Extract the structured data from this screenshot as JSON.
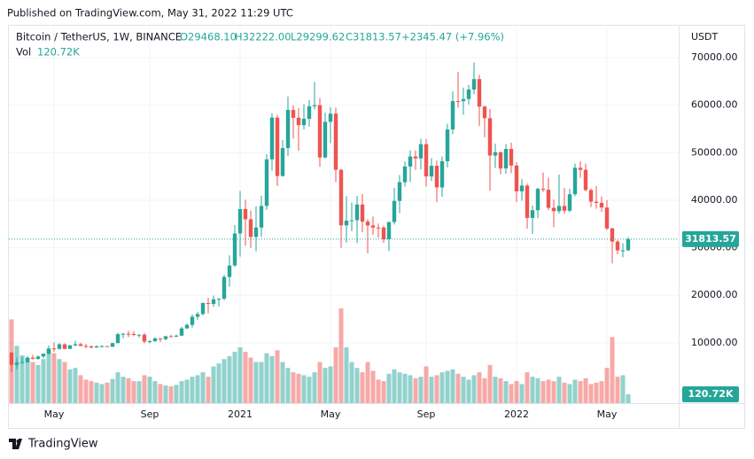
{
  "published": "Published on TradingView.com, May 31, 2022 11:29 UTC",
  "legend": {
    "symbol": "Bitcoin / TetherUS, 1W, BINANCE",
    "open": "O29468.10",
    "high": "H32222.00",
    "low": "L29299.62",
    "close": "C31813.57",
    "change": "+2345.47 (+7.96%)",
    "vol_name": "Vol",
    "vol_value": "120.72K"
  },
  "footer": "TradingView",
  "chart_data": {
    "type": "candlestick",
    "y_axis_unit": "USDT",
    "up_color": "#26a69a",
    "down_color": "#ef5350",
    "grid": true,
    "ylim": [
      -2710,
      76730
    ],
    "yticks": [
      {
        "value": 10000,
        "label": "10000.00"
      },
      {
        "value": 20000,
        "label": "20000.00"
      },
      {
        "value": 30000,
        "label": "30000.00"
      },
      {
        "value": 40000,
        "label": "40000.00"
      },
      {
        "value": 50000,
        "label": "50000.00"
      },
      {
        "value": 60000,
        "label": "60000.00"
      },
      {
        "value": 70000,
        "label": "70000.00"
      }
    ],
    "xlim": [
      -0.5,
      125.5
    ],
    "xticks": [
      {
        "value": 8,
        "label": "May"
      },
      {
        "value": 26,
        "label": "Sep"
      },
      {
        "value": 43,
        "label": "2021"
      },
      {
        "value": 60,
        "label": "May"
      },
      {
        "value": 78,
        "label": "Sep"
      },
      {
        "value": 95,
        "label": "2022"
      },
      {
        "value": 112,
        "label": "May"
      }
    ],
    "open": [
      7940,
      5361,
      5830,
      5880,
      6860,
      6625,
      7120,
      7700,
      8800,
      8720,
      9680,
      8720,
      9450,
      9700,
      9330,
      9290,
      9000,
      9250,
      9300,
      9160,
      9930,
      11800,
      11900,
      11850,
      11650,
      11700,
      10250,
      10330,
      10920,
      10770,
      11370,
      11290,
      11500,
      13030,
      13760,
      15480,
      16050,
      18370,
      18180,
      19150,
      19270,
      23850,
      26260,
      33000,
      38150,
      36000,
      32260,
      34250,
      38800,
      48600,
      57400,
      45100,
      50970,
      59000,
      57350,
      55800,
      57130,
      59770,
      60000,
      49000,
      56500,
      58230,
      46400,
      34700,
      35700,
      35800,
      39100,
      35500,
      34700,
      34250,
      34240,
      31780,
      35400,
      39850,
      43800,
      47100,
      49200,
      48800,
      51800,
      45000,
      47250,
      42700,
      48200,
      54900,
      60860,
      60850,
      61300,
      63300,
      65500,
      59700,
      57270,
      49400,
      50100,
      46680,
      50800,
      47300,
      41860,
      43080,
      36280,
      37900,
      42400,
      42200,
      38400,
      37700,
      38800,
      37800,
      41260,
      46830,
      46400,
      42150,
      39700,
      39450,
      38470,
      34060,
      31300,
      29450,
      29468.1
    ],
    "high": [
      8000,
      6900,
      6980,
      7200,
      7470,
      7300,
      7800,
      9460,
      10070,
      9940,
      9900,
      9590,
      10430,
      9990,
      9770,
      9340,
      9480,
      9450,
      9350,
      9990,
      12120,
      12080,
      12490,
      12470,
      11780,
      12070,
      10580,
      11180,
      11000,
      11490,
      11720,
      11730,
      13350,
      14100,
      15970,
      16480,
      18480,
      19490,
      19920,
      19400,
      24300,
      28420,
      34780,
      41950,
      40100,
      37850,
      38700,
      40950,
      49700,
      58350,
      58000,
      52640,
      61840,
      60000,
      59400,
      60200,
      61100,
      64854,
      61500,
      58450,
      59600,
      59500,
      46600,
      40850,
      39500,
      40900,
      41300,
      36000,
      36600,
      35100,
      34600,
      35500,
      42600,
      45300,
      48140,
      50500,
      50500,
      52920,
      52900,
      48840,
      48370,
      49200,
      56100,
      62900,
      67000,
      63700,
      64270,
      69000,
      66400,
      59900,
      59200,
      51900,
      50200,
      51800,
      52100,
      47990,
      44450,
      43500,
      38900,
      42660,
      45850,
      44750,
      40150,
      45400,
      42600,
      42400,
      47700,
      48200,
      47700,
      42450,
      42970,
      40800,
      40020,
      34250,
      31580,
      30950,
      32222
    ],
    "low": [
      3782,
      4440,
      5670,
      5860,
      6470,
      6460,
      6750,
      7580,
      8100,
      8550,
      8630,
      8700,
      9280,
      9280,
      8900,
      8830,
      8940,
      9030,
      9100,
      9140,
      9880,
      10950,
      11180,
      11400,
      11120,
      9880,
      9880,
      10200,
      10140,
      10500,
      11200,
      11210,
      11420,
      12900,
      13220,
      14800,
      15800,
      16190,
      17580,
      17650,
      19000,
      21800,
      26000,
      28130,
      30420,
      30000,
      29240,
      32300,
      37990,
      46200,
      43000,
      44950,
      49300,
      53000,
      50430,
      54890,
      55470,
      59100,
      47000,
      48800,
      52000,
      43800,
      30000,
      31100,
      33500,
      31000,
      33300,
      28800,
      32700,
      32100,
      31000,
      29300,
      34900,
      37300,
      42850,
      43900,
      46370,
      46500,
      42850,
      44050,
      39600,
      40750,
      46900,
      53880,
      59500,
      58000,
      60100,
      62300,
      55600,
      53250,
      42000,
      46800,
      45500,
      45560,
      45700,
      39650,
      39900,
      34000,
      32900,
      36250,
      41750,
      37950,
      34320,
      37200,
      37150,
      37500,
      40850,
      44750,
      41860,
      38550,
      38200,
      37570,
      33710,
      26700,
      28630,
      28020,
      29299.62
    ],
    "close": [
      5361,
      5830,
      5880,
      6860,
      6625,
      7120,
      7700,
      8800,
      8720,
      9680,
      8720,
      9450,
      9700,
      9330,
      9290,
      9000,
      9250,
      9300,
      9160,
      9930,
      11800,
      11900,
      11850,
      11650,
      11700,
      10250,
      10330,
      10920,
      10770,
      11370,
      11290,
      11500,
      13030,
      13760,
      15480,
      16050,
      18370,
      18180,
      19150,
      19270,
      23850,
      26260,
      33000,
      38150,
      36000,
      32260,
      34250,
      38800,
      48600,
      57400,
      45100,
      50970,
      59000,
      57350,
      55800,
      57130,
      59770,
      60000,
      49000,
      56500,
      58230,
      46400,
      34700,
      35700,
      35800,
      39100,
      35500,
      34700,
      34250,
      34240,
      31780,
      35400,
      39850,
      43800,
      47100,
      49200,
      48800,
      51800,
      45000,
      47250,
      42700,
      48200,
      54900,
      60860,
      60850,
      61300,
      63300,
      65500,
      59700,
      57270,
      49400,
      50100,
      46680,
      50800,
      47300,
      41860,
      43080,
      36280,
      37900,
      42400,
      42200,
      38400,
      37700,
      38800,
      37800,
      41260,
      46830,
      46400,
      42150,
      39700,
      39450,
      38470,
      34060,
      31300,
      29450,
      29468.1,
      31813.57
    ],
    "volume": [
      1140000,
      780000,
      650000,
      620000,
      560000,
      520000,
      600000,
      720000,
      680000,
      600000,
      560000,
      460000,
      480000,
      380000,
      320000,
      300000,
      280000,
      260000,
      280000,
      330000,
      420000,
      360000,
      340000,
      300000,
      300000,
      380000,
      360000,
      300000,
      260000,
      240000,
      230000,
      250000,
      300000,
      320000,
      360000,
      380000,
      420000,
      360000,
      500000,
      540000,
      600000,
      640000,
      700000,
      760000,
      700000,
      620000,
      560000,
      560000,
      680000,
      640000,
      720000,
      560000,
      480000,
      420000,
      400000,
      380000,
      360000,
      420000,
      560000,
      480000,
      500000,
      760000,
      1290000,
      760000,
      560000,
      480000,
      420000,
      560000,
      440000,
      320000,
      300000,
      400000,
      460000,
      420000,
      400000,
      380000,
      340000,
      360000,
      500000,
      360000,
      380000,
      420000,
      440000,
      460000,
      400000,
      360000,
      320000,
      380000,
      420000,
      340000,
      520000,
      360000,
      340000,
      300000,
      260000,
      300000,
      260000,
      420000,
      360000,
      340000,
      300000,
      320000,
      300000,
      360000,
      280000,
      260000,
      320000,
      300000,
      340000,
      260000,
      280000,
      300000,
      480000,
      900000,
      360000,
      380000,
      120720
    ]
  }
}
